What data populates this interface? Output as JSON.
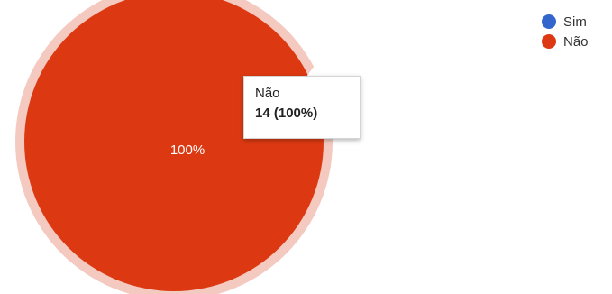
{
  "chart_data": {
    "type": "pie",
    "categories": [
      "Sim",
      "Não"
    ],
    "values": [
      0,
      14
    ],
    "colors": [
      "#3366cc",
      "#dc3912"
    ],
    "slice_labels": [
      "",
      "100%"
    ],
    "legend_position": "top-right",
    "tooltip": {
      "category": "Não",
      "value_text": "14 (100%)"
    }
  }
}
